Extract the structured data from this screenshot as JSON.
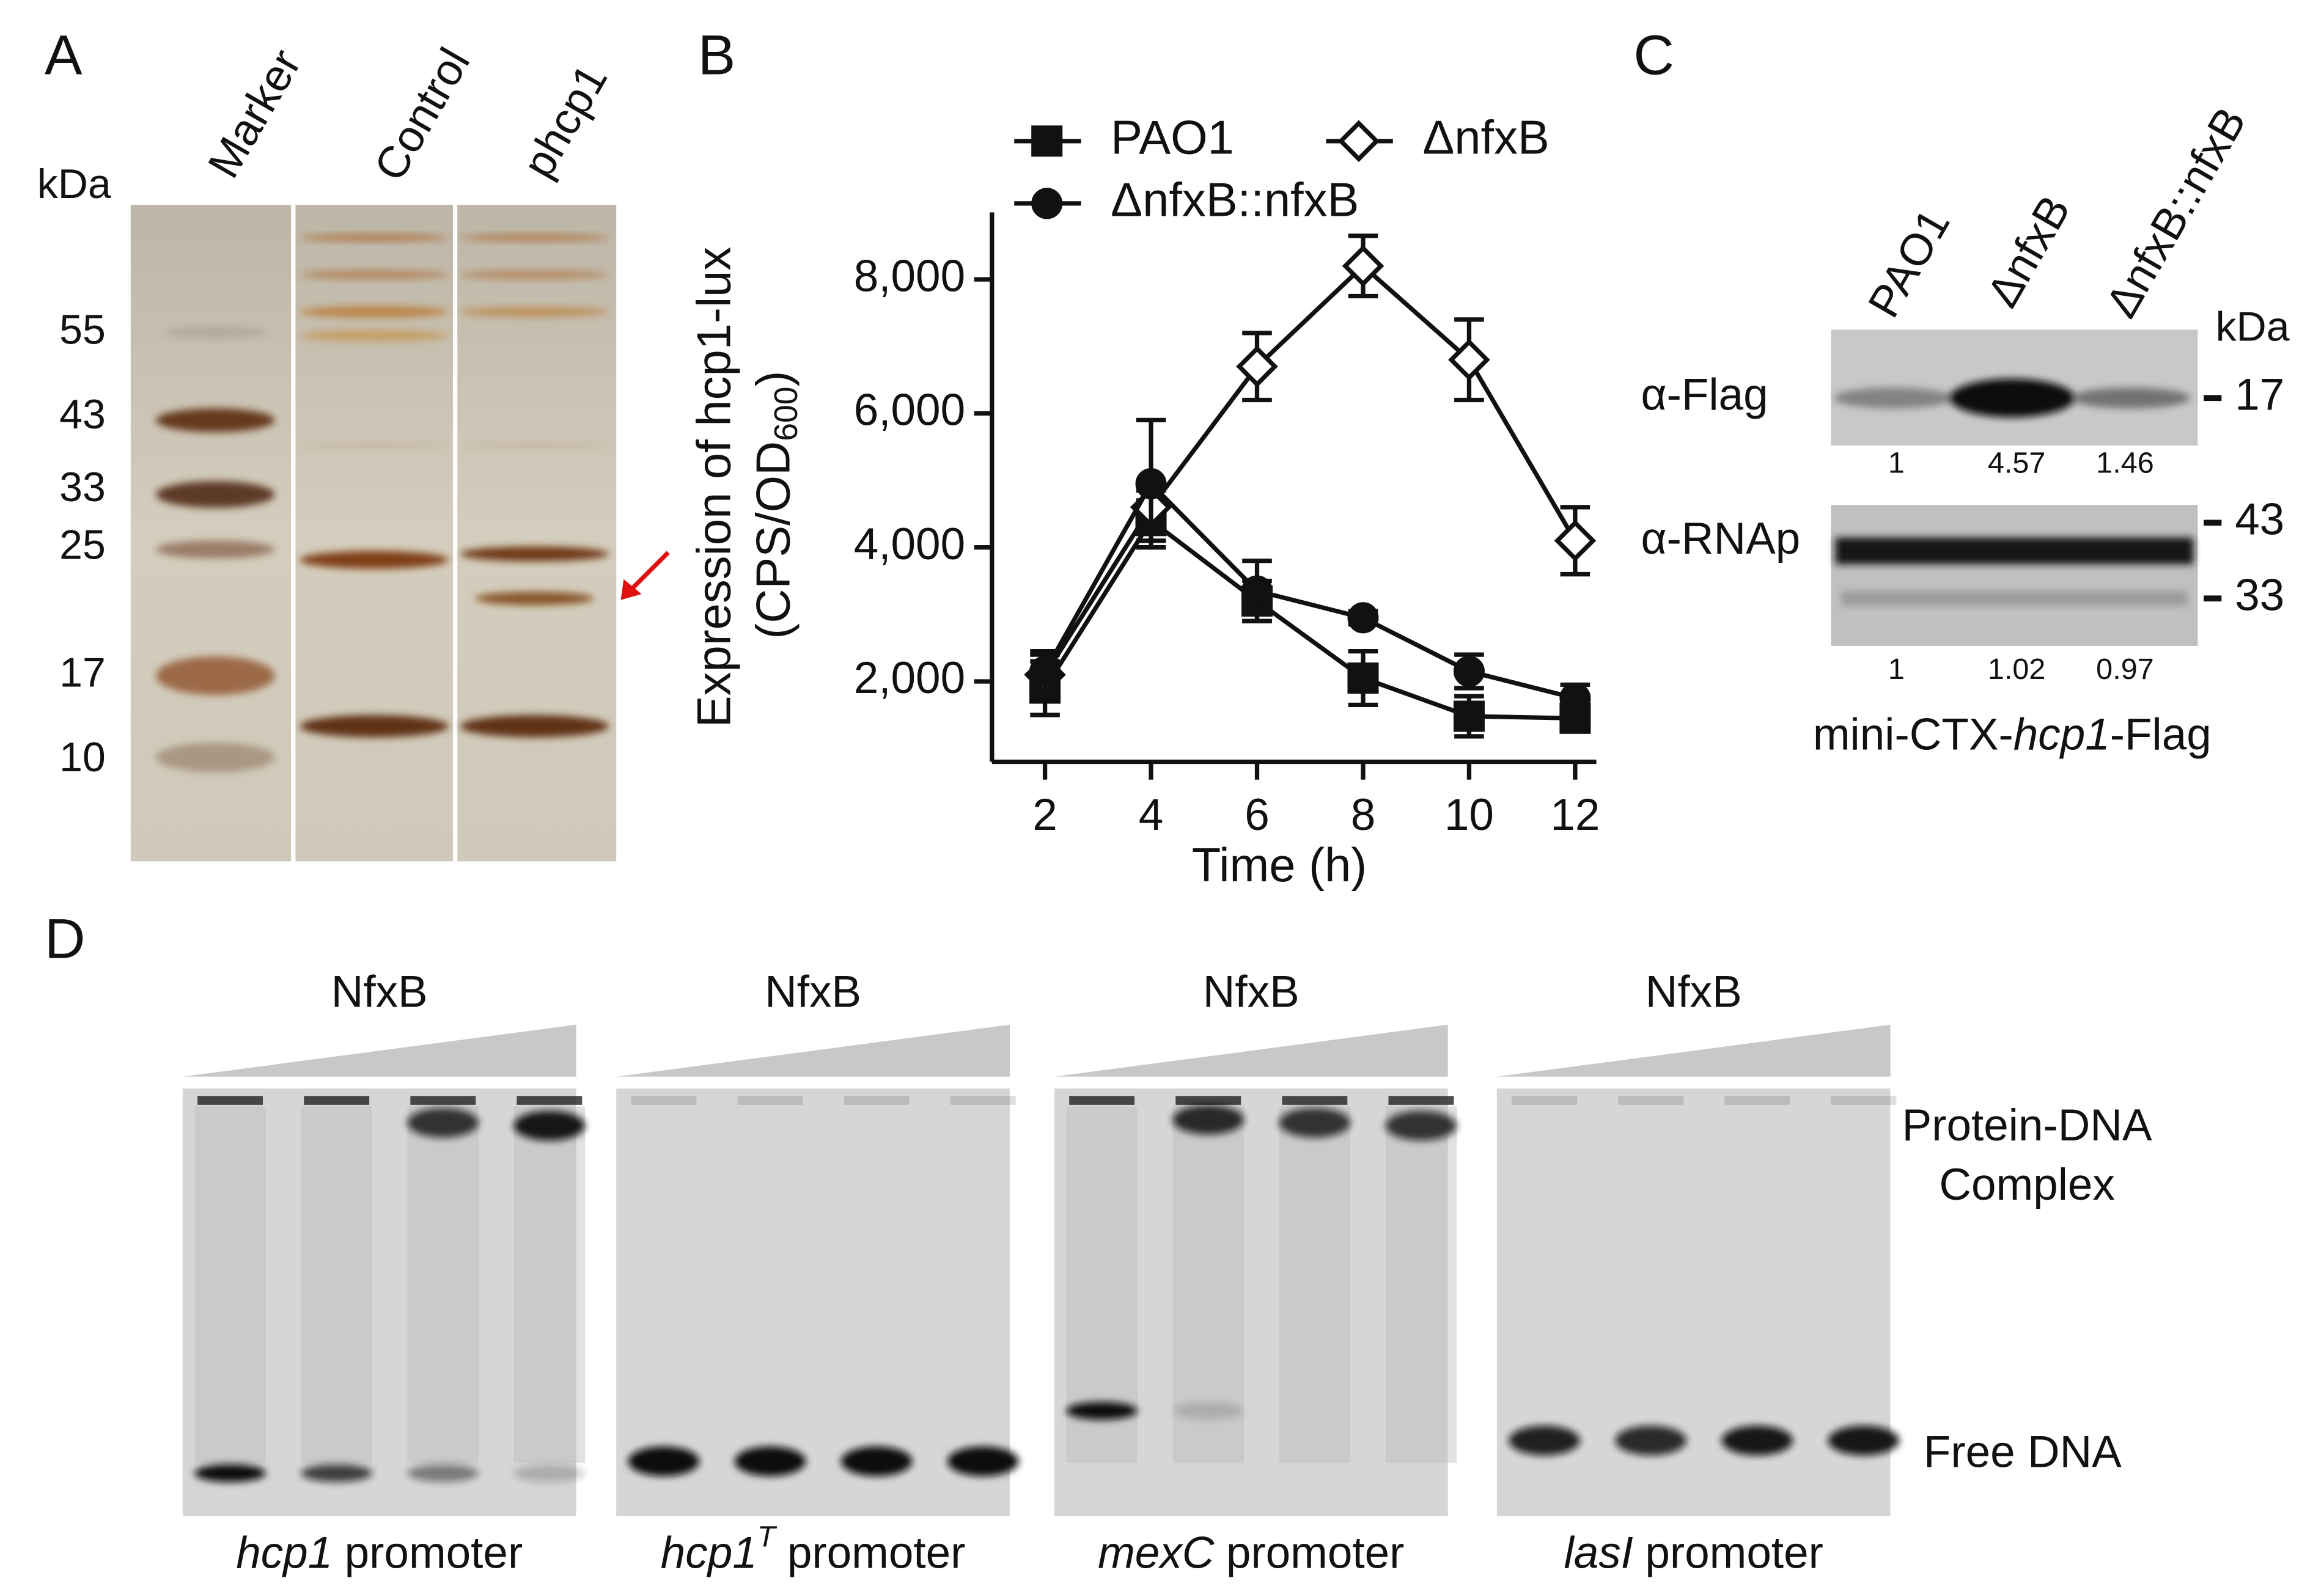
{
  "panel_labels": [
    "A",
    "B",
    "C",
    "D"
  ],
  "panel_a": {
    "lanes": [
      "Marker",
      "Control",
      "phcp1"
    ],
    "unit": "kDa",
    "markers": [
      "55",
      "43",
      "33",
      "25",
      "17",
      "10"
    ]
  },
  "chart_data": {
    "type": "line",
    "x_label": "Time (h)",
    "y_label": {
      "text": "Expression of hcp1-lux",
      "units": "(CPS/OD",
      "units_sub": "600",
      "units_end": ")"
    },
    "x": [
      2,
      4,
      6,
      8,
      10,
      12
    ],
    "xlim": [
      1,
      12.4
    ],
    "xticks": [
      2,
      4,
      6,
      8,
      10,
      12
    ],
    "ylim": [
      800,
      9000
    ],
    "yticks": [
      {
        "value": 2000,
        "label": "2,000"
      },
      {
        "value": 4000,
        "label": "4,000"
      },
      {
        "value": 6000,
        "label": "6,000"
      },
      {
        "value": 8000,
        "label": "8,000"
      }
    ],
    "legend": "top",
    "series": [
      {
        "name": "PAO1",
        "color": "#111111",
        "marker": "square",
        "marker_fill": "#111111",
        "values": [
          1900,
          4400,
          3200,
          2050,
          1480,
          1450
        ],
        "errors": [
          400,
          300,
          300,
          400,
          300,
          150
        ]
      },
      {
        "name": "ΔnfxB",
        "color": "#111111",
        "marker": "diamond",
        "marker_fill": "#ffffff",
        "values": [
          2100,
          4600,
          6700,
          8200,
          6800,
          4100
        ],
        "errors": [
          300,
          250,
          500,
          450,
          600,
          500
        ]
      },
      {
        "name": "ΔnfxB::nfxB",
        "color": "#111111",
        "marker": "circle",
        "marker_fill": "#111111",
        "values": [
          2150,
          4950,
          3350,
          2950,
          2150,
          1750
        ],
        "errors": [
          300,
          950,
          450,
          100,
          250,
          200
        ]
      }
    ]
  },
  "panel_c": {
    "strains": [
      "PAO1",
      "ΔnfxB",
      "ΔnfxB::nfxB"
    ],
    "unit": "kDa",
    "blots": [
      {
        "label": "α-Flag",
        "markers": [
          "17"
        ],
        "quant": [
          "1",
          "4.57",
          "1.46"
        ]
      },
      {
        "label": "α-RNAp",
        "markers": [
          "43",
          "33"
        ],
        "quant": [
          "1",
          "1.02",
          "0.97"
        ]
      }
    ],
    "construct": {
      "prefix": "mini-CTX-",
      "gene": "hcp1",
      "suffix": "-Flag"
    }
  },
  "panel_d": {
    "gels": [
      {
        "protein": "NfxB",
        "gene": "hcp1",
        "suffix": "promoter"
      },
      {
        "protein": "NfxB",
        "gene": "hcp1",
        "sup": "T",
        "suffix": "promoter"
      },
      {
        "protein": "NfxB",
        "gene": "mexC",
        "suffix": "promoter"
      },
      {
        "protein": "NfxB",
        "gene": "lasI",
        "suffix": "promoter"
      }
    ],
    "complex": [
      "Protein-DNA",
      "Complex"
    ],
    "free": "Free DNA"
  }
}
